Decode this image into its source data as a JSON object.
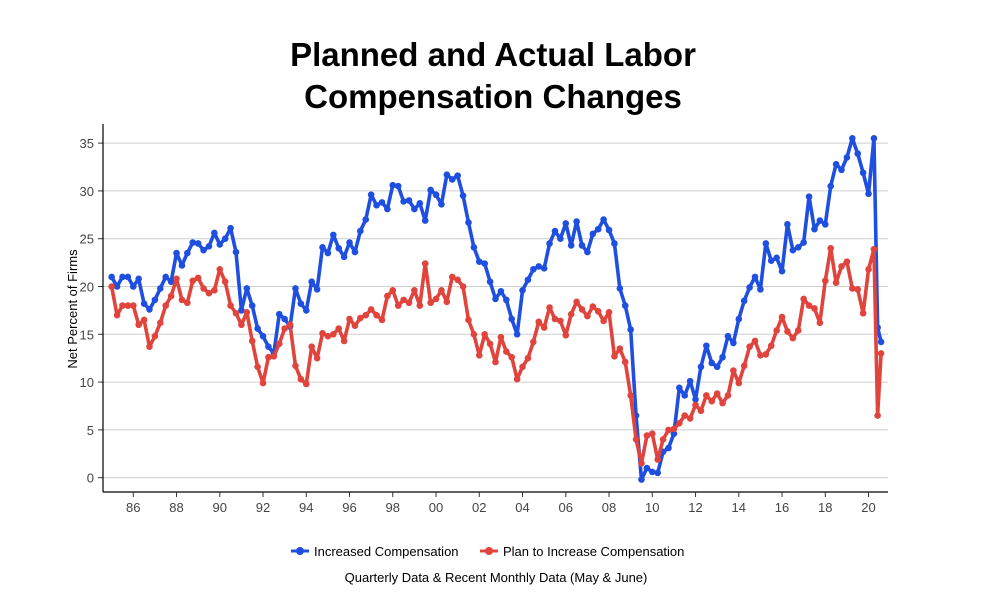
{
  "chart_data": {
    "type": "line",
    "title_line1": "Planned and Actual Labor",
    "title_line2": "Compensation Changes",
    "ylabel": "Net Percent of Firms",
    "xlabel": "",
    "ylim": [
      -1.5,
      37
    ],
    "xlim": [
      1984.6,
      2020.9
    ],
    "yticks": [
      0,
      5,
      10,
      15,
      20,
      25,
      30,
      35
    ],
    "xticks": [
      1986,
      1988,
      1990,
      1992,
      1994,
      1996,
      1998,
      2000,
      2002,
      2004,
      2006,
      2008,
      2010,
      2012,
      2014,
      2016,
      2018,
      2020
    ],
    "xtick_labels": [
      "86",
      "88",
      "90",
      "92",
      "94",
      "96",
      "98",
      "00",
      "02",
      "04",
      "06",
      "08",
      "10",
      "12",
      "14",
      "16",
      "18",
      "20"
    ],
    "grid": "horizontal",
    "legend_position": "bottom",
    "note": "Quarterly Data & Recent Monthly Data (May & June)",
    "series": [
      {
        "name": "Increased Compensation",
        "color": "#1f4fe0",
        "points": [
          [
            1985.0,
            21.0
          ],
          [
            1985.25,
            20.0
          ],
          [
            1985.5,
            21.0
          ],
          [
            1985.75,
            21.0
          ],
          [
            1986.0,
            20.0
          ],
          [
            1986.25,
            20.8
          ],
          [
            1986.5,
            18.2
          ],
          [
            1986.75,
            17.6
          ],
          [
            1987.0,
            18.6
          ],
          [
            1987.25,
            19.8
          ],
          [
            1987.5,
            21.0
          ],
          [
            1987.75,
            20.5
          ],
          [
            1988.0,
            23.5
          ],
          [
            1988.25,
            22.2
          ],
          [
            1988.5,
            23.5
          ],
          [
            1988.75,
            24.6
          ],
          [
            1989.0,
            24.5
          ],
          [
            1989.25,
            23.8
          ],
          [
            1989.5,
            24.2
          ],
          [
            1989.75,
            25.6
          ],
          [
            1990.0,
            24.4
          ],
          [
            1990.25,
            25.0
          ],
          [
            1990.5,
            26.1
          ],
          [
            1990.75,
            23.6
          ],
          [
            1991.0,
            17.5
          ],
          [
            1991.25,
            19.8
          ],
          [
            1991.5,
            18.0
          ],
          [
            1991.75,
            15.6
          ],
          [
            1992.0,
            14.8
          ],
          [
            1992.25,
            13.7
          ],
          [
            1992.5,
            13.0
          ],
          [
            1992.75,
            17.1
          ],
          [
            1993.0,
            16.6
          ],
          [
            1993.25,
            15.8
          ],
          [
            1993.5,
            19.8
          ],
          [
            1993.75,
            18.2
          ],
          [
            1994.0,
            17.5
          ],
          [
            1994.25,
            20.5
          ],
          [
            1994.5,
            19.7
          ],
          [
            1994.75,
            24.1
          ],
          [
            1995.0,
            23.5
          ],
          [
            1995.25,
            25.4
          ],
          [
            1995.5,
            24.0
          ],
          [
            1995.75,
            23.1
          ],
          [
            1996.0,
            24.6
          ],
          [
            1996.25,
            23.6
          ],
          [
            1996.5,
            25.8
          ],
          [
            1996.75,
            27.0
          ],
          [
            1997.0,
            29.6
          ],
          [
            1997.25,
            28.5
          ],
          [
            1997.5,
            28.8
          ],
          [
            1997.75,
            28.1
          ],
          [
            1998.0,
            30.6
          ],
          [
            1998.25,
            30.5
          ],
          [
            1998.5,
            28.9
          ],
          [
            1998.75,
            29.0
          ],
          [
            1999.0,
            28.1
          ],
          [
            1999.25,
            28.7
          ],
          [
            1999.5,
            26.9
          ],
          [
            1999.75,
            30.1
          ],
          [
            2000.0,
            29.6
          ],
          [
            2000.25,
            28.6
          ],
          [
            2000.5,
            31.7
          ],
          [
            2000.75,
            31.2
          ],
          [
            2001.0,
            31.6
          ],
          [
            2001.25,
            29.5
          ],
          [
            2001.5,
            26.7
          ],
          [
            2001.75,
            24.1
          ],
          [
            2002.0,
            22.6
          ],
          [
            2002.25,
            22.4
          ],
          [
            2002.5,
            20.5
          ],
          [
            2002.75,
            18.7
          ],
          [
            2003.0,
            19.5
          ],
          [
            2003.25,
            18.6
          ],
          [
            2003.5,
            16.6
          ],
          [
            2003.75,
            15.0
          ],
          [
            2004.0,
            19.6
          ],
          [
            2004.25,
            20.7
          ],
          [
            2004.5,
            21.8
          ],
          [
            2004.75,
            22.1
          ],
          [
            2005.0,
            21.9
          ],
          [
            2005.25,
            24.5
          ],
          [
            2005.5,
            25.8
          ],
          [
            2005.75,
            25.0
          ],
          [
            2006.0,
            26.6
          ],
          [
            2006.25,
            24.3
          ],
          [
            2006.5,
            26.8
          ],
          [
            2006.75,
            24.3
          ],
          [
            2007.0,
            23.6
          ],
          [
            2007.25,
            25.5
          ],
          [
            2007.5,
            26.0
          ],
          [
            2007.75,
            27.0
          ],
          [
            2008.0,
            25.9
          ],
          [
            2008.25,
            24.5
          ],
          [
            2008.5,
            19.8
          ],
          [
            2008.75,
            18.0
          ],
          [
            2009.0,
            15.5
          ],
          [
            2009.25,
            6.5
          ],
          [
            2009.5,
            -0.2
          ],
          [
            2009.75,
            1.0
          ],
          [
            2010.0,
            0.6
          ],
          [
            2010.25,
            0.5
          ],
          [
            2010.5,
            2.7
          ],
          [
            2010.75,
            3.1
          ],
          [
            2011.0,
            4.6
          ],
          [
            2011.25,
            9.4
          ],
          [
            2011.5,
            8.6
          ],
          [
            2011.75,
            10.1
          ],
          [
            2012.0,
            8.2
          ],
          [
            2012.25,
            11.6
          ],
          [
            2012.5,
            13.8
          ],
          [
            2012.75,
            12.0
          ],
          [
            2013.0,
            11.6
          ],
          [
            2013.25,
            12.6
          ],
          [
            2013.5,
            14.8
          ],
          [
            2013.75,
            14.1
          ],
          [
            2014.0,
            16.6
          ],
          [
            2014.25,
            18.5
          ],
          [
            2014.5,
            19.9
          ],
          [
            2014.75,
            21.0
          ],
          [
            2015.0,
            19.7
          ],
          [
            2015.25,
            24.5
          ],
          [
            2015.5,
            22.7
          ],
          [
            2015.75,
            23.0
          ],
          [
            2016.0,
            21.6
          ],
          [
            2016.25,
            26.5
          ],
          [
            2016.5,
            23.8
          ],
          [
            2016.75,
            24.1
          ],
          [
            2017.0,
            24.6
          ],
          [
            2017.25,
            29.4
          ],
          [
            2017.5,
            26.0
          ],
          [
            2017.75,
            26.9
          ],
          [
            2018.0,
            26.5
          ],
          [
            2018.25,
            30.5
          ],
          [
            2018.5,
            32.8
          ],
          [
            2018.75,
            32.2
          ],
          [
            2019.0,
            33.5
          ],
          [
            2019.25,
            35.5
          ],
          [
            2019.5,
            33.9
          ],
          [
            2019.75,
            31.9
          ],
          [
            2020.0,
            29.7
          ],
          [
            2020.25,
            35.5
          ],
          [
            2020.42,
            15.7
          ],
          [
            2020.58,
            14.2
          ]
        ]
      },
      {
        "name": "Plan to Increase Compensation",
        "color": "#e0443c",
        "points": [
          [
            1985.0,
            20.0
          ],
          [
            1985.25,
            17.0
          ],
          [
            1985.5,
            18.0
          ],
          [
            1985.75,
            18.0
          ],
          [
            1986.0,
            18.0
          ],
          [
            1986.25,
            16.0
          ],
          [
            1986.5,
            16.5
          ],
          [
            1986.75,
            13.7
          ],
          [
            1987.0,
            14.8
          ],
          [
            1987.25,
            16.2
          ],
          [
            1987.5,
            18.0
          ],
          [
            1987.75,
            19.0
          ],
          [
            1988.0,
            20.8
          ],
          [
            1988.25,
            18.6
          ],
          [
            1988.5,
            18.3
          ],
          [
            1988.75,
            20.6
          ],
          [
            1989.0,
            20.9
          ],
          [
            1989.25,
            19.8
          ],
          [
            1989.5,
            19.3
          ],
          [
            1989.75,
            19.6
          ],
          [
            1990.0,
            21.8
          ],
          [
            1990.25,
            20.5
          ],
          [
            1990.5,
            18.0
          ],
          [
            1990.75,
            17.2
          ],
          [
            1991.0,
            16.0
          ],
          [
            1991.25,
            17.3
          ],
          [
            1991.5,
            14.3
          ],
          [
            1991.75,
            11.6
          ],
          [
            1992.0,
            9.9
          ],
          [
            1992.25,
            12.6
          ],
          [
            1992.5,
            12.7
          ],
          [
            1992.75,
            14.0
          ],
          [
            1993.0,
            15.6
          ],
          [
            1993.25,
            16.0
          ],
          [
            1993.5,
            11.7
          ],
          [
            1993.75,
            10.3
          ],
          [
            1994.0,
            9.8
          ],
          [
            1994.25,
            13.7
          ],
          [
            1994.5,
            12.5
          ],
          [
            1994.75,
            15.1
          ],
          [
            1995.0,
            14.8
          ],
          [
            1995.25,
            15.0
          ],
          [
            1995.5,
            15.6
          ],
          [
            1995.75,
            14.3
          ],
          [
            1996.0,
            16.6
          ],
          [
            1996.25,
            15.9
          ],
          [
            1996.5,
            16.7
          ],
          [
            1996.75,
            17.0
          ],
          [
            1997.0,
            17.6
          ],
          [
            1997.25,
            17.0
          ],
          [
            1997.5,
            16.5
          ],
          [
            1997.75,
            19.0
          ],
          [
            1998.0,
            19.6
          ],
          [
            1998.25,
            18.0
          ],
          [
            1998.5,
            18.6
          ],
          [
            1998.75,
            18.3
          ],
          [
            1999.0,
            19.6
          ],
          [
            1999.25,
            18.0
          ],
          [
            1999.5,
            22.4
          ],
          [
            1999.75,
            18.3
          ],
          [
            2000.0,
            18.7
          ],
          [
            2000.25,
            19.6
          ],
          [
            2000.5,
            18.4
          ],
          [
            2000.75,
            21.0
          ],
          [
            2001.0,
            20.7
          ],
          [
            2001.25,
            20.0
          ],
          [
            2001.5,
            16.5
          ],
          [
            2001.75,
            15.0
          ],
          [
            2002.0,
            12.8
          ],
          [
            2002.25,
            15.0
          ],
          [
            2002.5,
            14.0
          ],
          [
            2002.75,
            12.1
          ],
          [
            2003.0,
            14.7
          ],
          [
            2003.25,
            13.2
          ],
          [
            2003.5,
            12.6
          ],
          [
            2003.75,
            10.3
          ],
          [
            2004.0,
            11.6
          ],
          [
            2004.25,
            12.5
          ],
          [
            2004.5,
            14.2
          ],
          [
            2004.75,
            16.3
          ],
          [
            2005.0,
            15.7
          ],
          [
            2005.25,
            17.8
          ],
          [
            2005.5,
            16.6
          ],
          [
            2005.75,
            16.4
          ],
          [
            2006.0,
            14.9
          ],
          [
            2006.25,
            17.1
          ],
          [
            2006.5,
            18.4
          ],
          [
            2006.75,
            17.6
          ],
          [
            2007.0,
            16.9
          ],
          [
            2007.25,
            17.9
          ],
          [
            2007.5,
            17.4
          ],
          [
            2007.75,
            16.4
          ],
          [
            2008.0,
            17.3
          ],
          [
            2008.25,
            12.7
          ],
          [
            2008.5,
            13.5
          ],
          [
            2008.75,
            12.1
          ],
          [
            2009.0,
            8.6
          ],
          [
            2009.25,
            4.0
          ],
          [
            2009.5,
            1.5
          ],
          [
            2009.75,
            4.4
          ],
          [
            2010.0,
            4.6
          ],
          [
            2010.25,
            1.9
          ],
          [
            2010.5,
            4.0
          ],
          [
            2010.75,
            5.0
          ],
          [
            2011.0,
            5.1
          ],
          [
            2011.25,
            5.7
          ],
          [
            2011.5,
            6.5
          ],
          [
            2011.75,
            6.2
          ],
          [
            2012.0,
            7.6
          ],
          [
            2012.25,
            7.0
          ],
          [
            2012.5,
            8.6
          ],
          [
            2012.75,
            8.0
          ],
          [
            2013.0,
            8.8
          ],
          [
            2013.25,
            7.8
          ],
          [
            2013.5,
            8.6
          ],
          [
            2013.75,
            11.2
          ],
          [
            2014.0,
            9.9
          ],
          [
            2014.25,
            11.7
          ],
          [
            2014.5,
            13.7
          ],
          [
            2014.75,
            14.3
          ],
          [
            2015.0,
            12.8
          ],
          [
            2015.25,
            12.9
          ],
          [
            2015.5,
            13.8
          ],
          [
            2015.75,
            15.4
          ],
          [
            2016.0,
            16.8
          ],
          [
            2016.25,
            15.3
          ],
          [
            2016.5,
            14.6
          ],
          [
            2016.75,
            15.4
          ],
          [
            2017.0,
            18.7
          ],
          [
            2017.25,
            18.0
          ],
          [
            2017.5,
            17.7
          ],
          [
            2017.75,
            16.2
          ],
          [
            2018.0,
            20.6
          ],
          [
            2018.25,
            24.0
          ],
          [
            2018.5,
            20.4
          ],
          [
            2018.75,
            22.1
          ],
          [
            2019.0,
            22.6
          ],
          [
            2019.25,
            19.8
          ],
          [
            2019.5,
            19.7
          ],
          [
            2019.75,
            17.2
          ],
          [
            2020.0,
            21.8
          ],
          [
            2020.25,
            23.9
          ],
          [
            2020.42,
            6.5
          ],
          [
            2020.58,
            13.0
          ]
        ]
      }
    ]
  }
}
